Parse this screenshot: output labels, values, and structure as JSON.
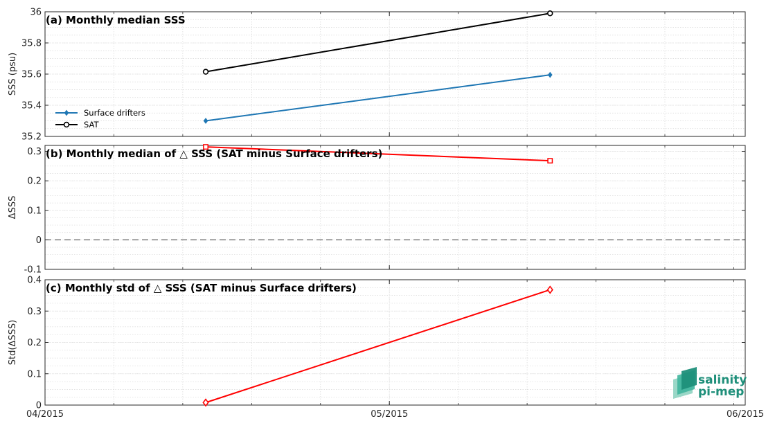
{
  "chart_data": [
    {
      "type": "line",
      "title": "(a) Monthly median SSS",
      "xlabel": "",
      "ylabel": "SSS (psu)",
      "xlim": [
        "2015-04-01",
        "2015-06-01"
      ],
      "ylim": [
        35.2,
        36.0
      ],
      "yticks": [
        35.2,
        35.4,
        35.6,
        35.8,
        36
      ],
      "ytick_labels": [
        "35.2",
        "35.4",
        "35.6",
        "35.8",
        "36"
      ],
      "grid": true,
      "legend_position": "left",
      "series": [
        {
          "name": "Surface drifters",
          "color": "#1f77b4",
          "marker": "diamond",
          "x": [
            "2015-04-15",
            "2015-05-15"
          ],
          "values": [
            35.3,
            35.595
          ]
        },
        {
          "name": "SAT",
          "color": "#000000",
          "marker": "circle",
          "x": [
            "2015-04-15",
            "2015-05-15"
          ],
          "values": [
            35.615,
            35.99
          ]
        }
      ]
    },
    {
      "type": "line",
      "title": "(b) Monthly median of △ SSS (SAT minus Surface drifters)",
      "xlabel": "",
      "ylabel": "ΔSSS",
      "xlim": [
        "2015-04-01",
        "2015-06-01"
      ],
      "ylim": [
        -0.1,
        0.32
      ],
      "yticks": [
        -0.1,
        0,
        0.1,
        0.2,
        0.3
      ],
      "ytick_labels": [
        "-0.1",
        "0",
        "0.1",
        "0.2",
        "0.3"
      ],
      "grid": true,
      "zero_line": "dashed",
      "series": [
        {
          "color": "#ff0000",
          "marker": "square",
          "x": [
            "2015-04-15",
            "2015-05-15"
          ],
          "values": [
            0.315,
            0.268
          ]
        }
      ]
    },
    {
      "type": "line",
      "title": "(c) Monthly std of △ SSS (SAT minus Surface drifters)",
      "xlabel": "",
      "ylabel": "Std(ΔSSS)",
      "xlim": [
        "2015-04-01",
        "2015-06-01"
      ],
      "ylim": [
        0,
        0.4
      ],
      "yticks": [
        0,
        0.1,
        0.2,
        0.3,
        0.4
      ],
      "ytick_labels": [
        "0",
        "0.1",
        "0.2",
        "0.3",
        "0.4"
      ],
      "xticks": [
        "2015-04-01",
        "2015-05-01",
        "2015-06-01"
      ],
      "xtick_labels": [
        "04/2015",
        "05/2015",
        "06/2015"
      ],
      "grid": true,
      "series": [
        {
          "color": "#ff0000",
          "marker": "diamond",
          "x": [
            "2015-04-15",
            "2015-05-15"
          ],
          "values": [
            0.008,
            0.368
          ]
        }
      ]
    }
  ],
  "logo": {
    "line1": "salinity",
    "line2": "pi-mep",
    "color": "#1f8f7a"
  }
}
